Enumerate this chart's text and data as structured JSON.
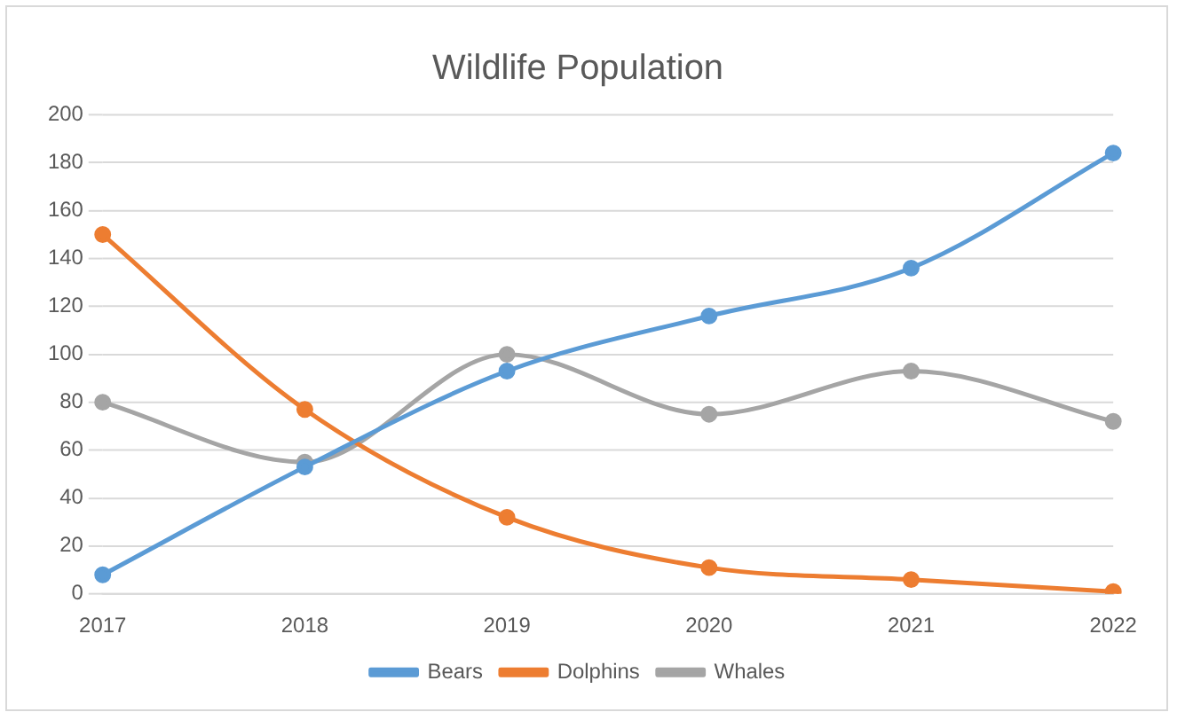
{
  "chart_data": {
    "type": "line",
    "title": "Wildlife Population",
    "categories": [
      "2017",
      "2018",
      "2019",
      "2020",
      "2021",
      "2022"
    ],
    "series": [
      {
        "name": "Bears",
        "color": "#5b9bd5",
        "values": [
          8,
          53,
          93,
          116,
          136,
          184
        ]
      },
      {
        "name": "Dolphins",
        "color": "#ed7d31",
        "values": [
          150,
          77,
          32,
          11,
          6,
          1
        ]
      },
      {
        "name": "Whales",
        "color": "#a5a5a5",
        "values": [
          80,
          55,
          100,
          75,
          93,
          72
        ]
      }
    ],
    "ylim": [
      0,
      200
    ],
    "yticks": [
      0,
      20,
      40,
      60,
      80,
      100,
      120,
      140,
      160,
      180,
      200
    ],
    "grid": "y",
    "legend": "bottom",
    "marker": "circle",
    "line_style": "solid"
  }
}
